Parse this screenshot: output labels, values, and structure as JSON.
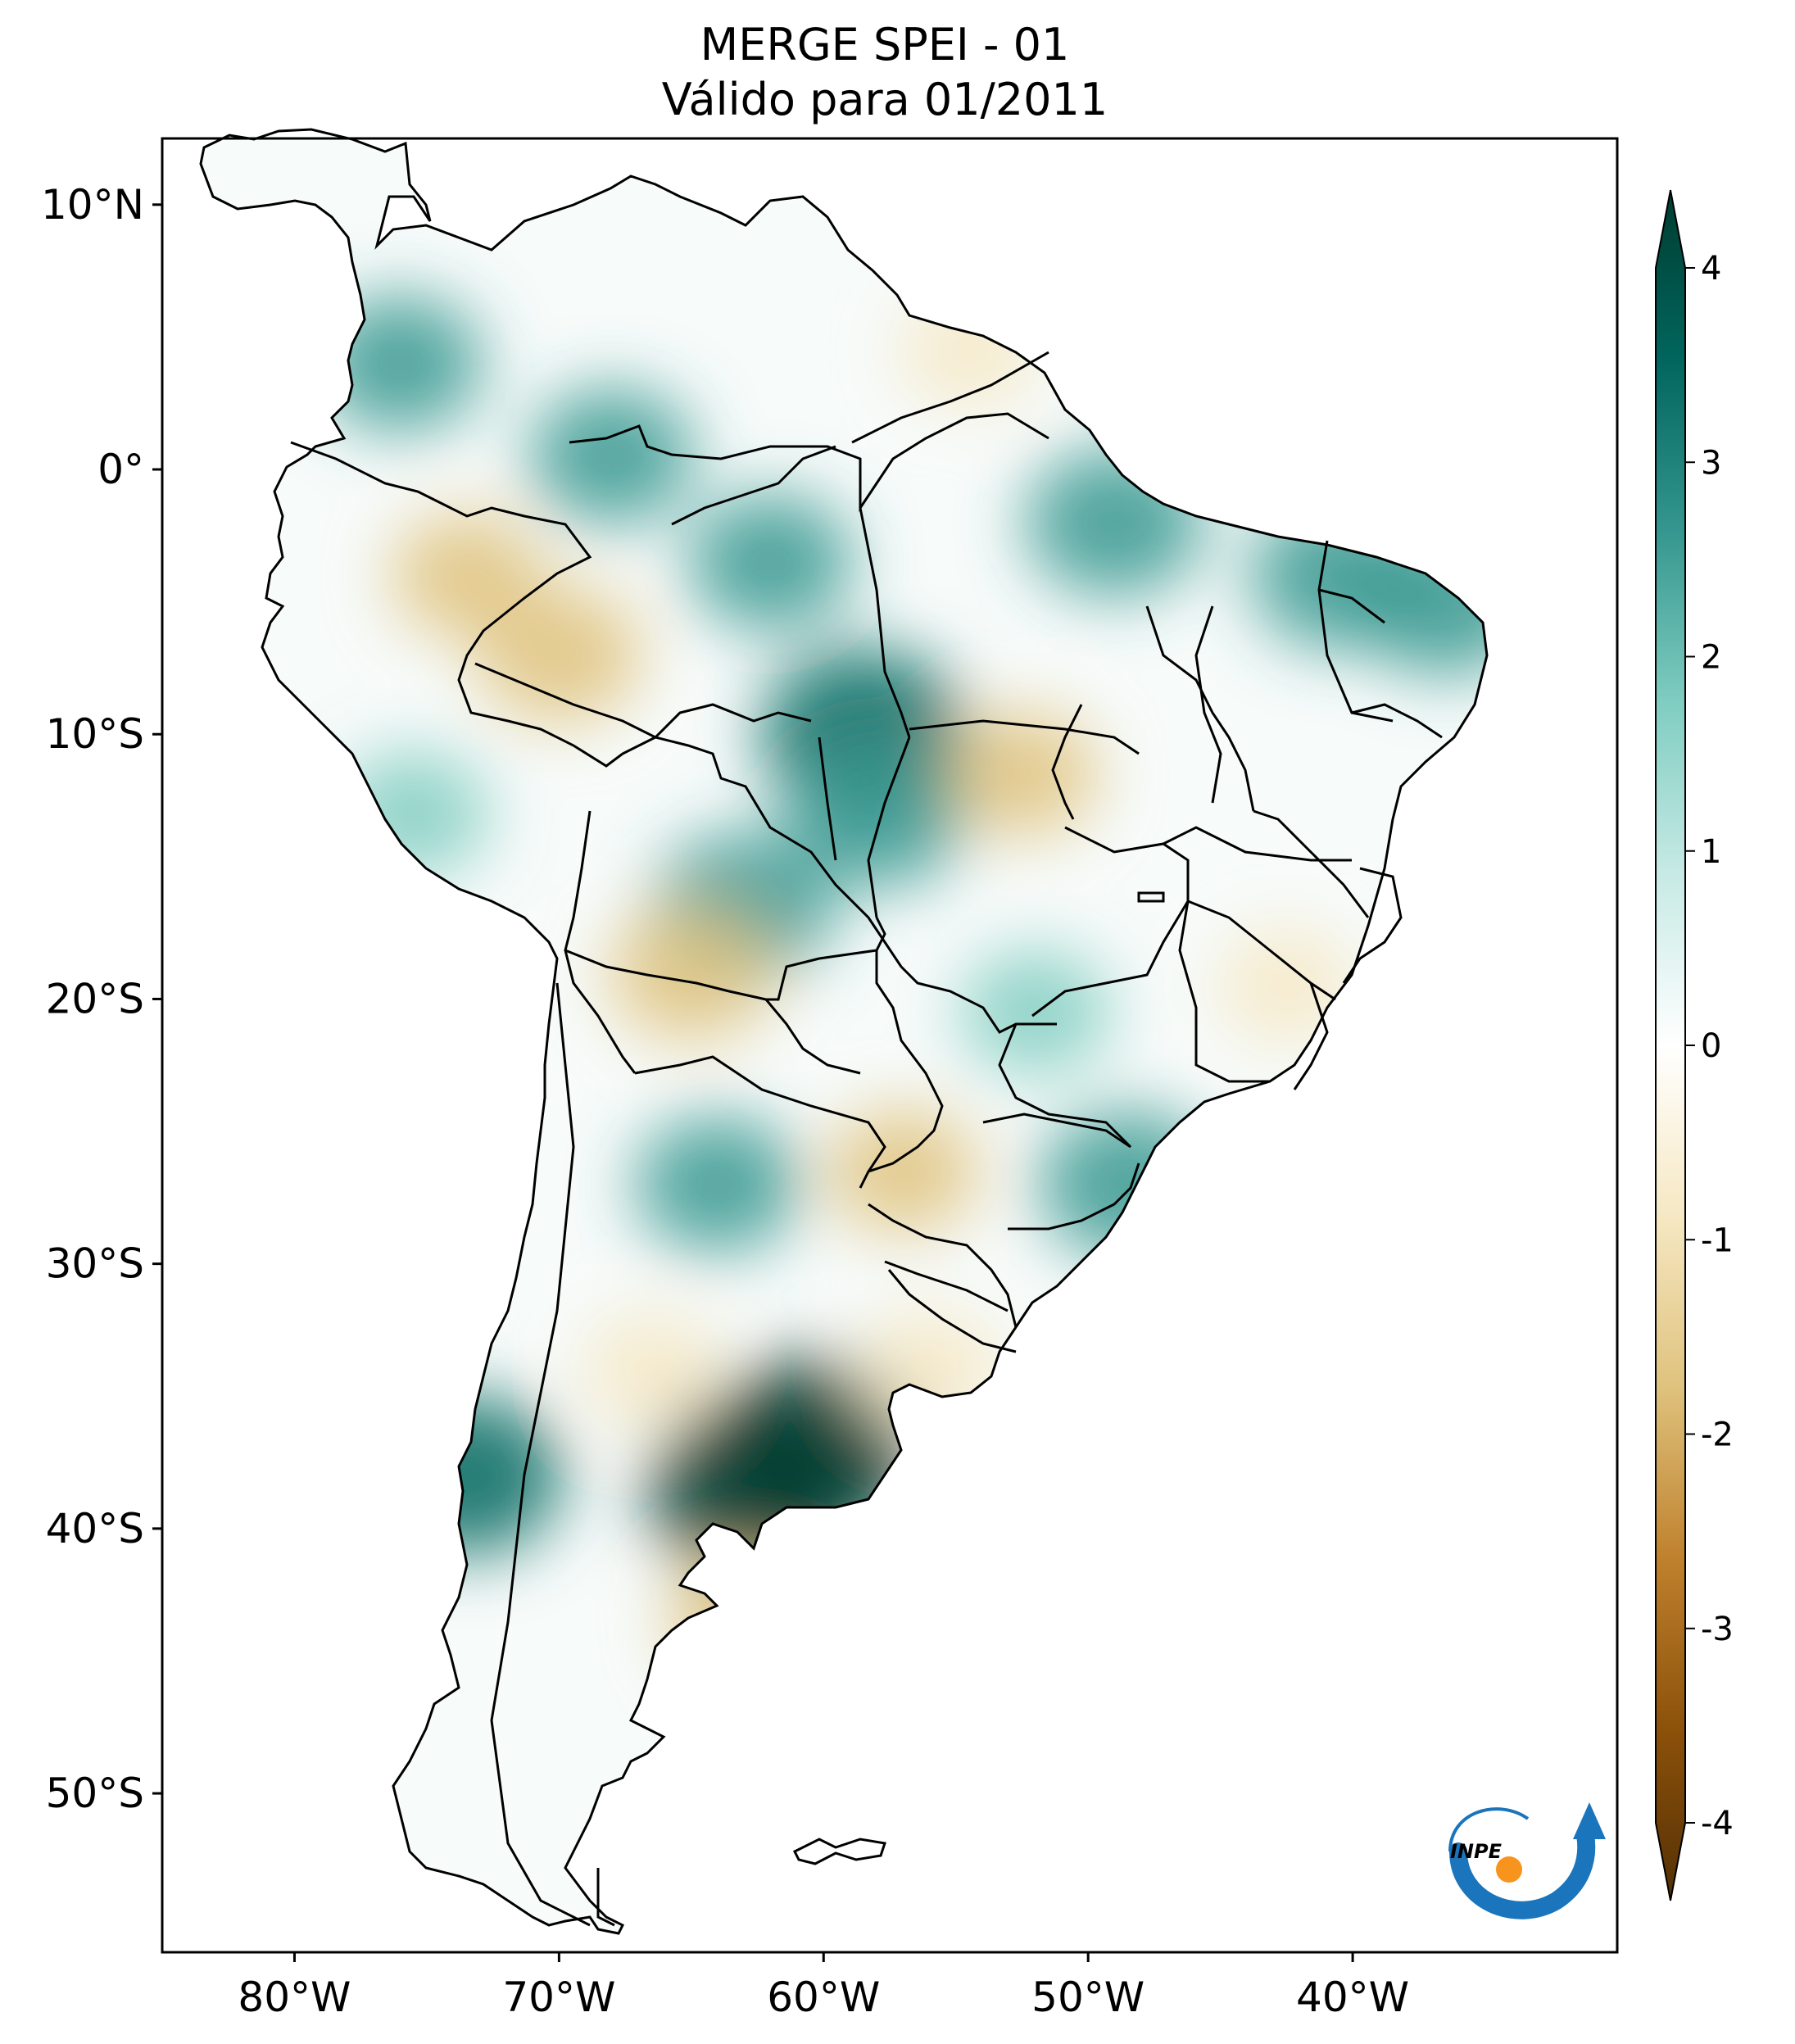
{
  "header": {
    "title_line1": "MERGE   SPEI - 01",
    "title_line2": "Válido para 01/2011"
  },
  "map": {
    "lon_range": [
      -85,
      -30
    ],
    "lat_range": [
      -56,
      12.5
    ],
    "lat_ticks": [
      {
        "value": 10,
        "label": "10°N"
      },
      {
        "value": 0,
        "label": "0°"
      },
      {
        "value": -10,
        "label": "10°S"
      },
      {
        "value": -20,
        "label": "20°S"
      },
      {
        "value": -30,
        "label": "30°S"
      },
      {
        "value": -40,
        "label": "40°S"
      },
      {
        "value": -50,
        "label": "50°S"
      }
    ],
    "lon_ticks": [
      {
        "value": -80,
        "label": "80°W"
      },
      {
        "value": -70,
        "label": "70°W"
      },
      {
        "value": -60,
        "label": "60°W"
      },
      {
        "value": -50,
        "label": "50°W"
      },
      {
        "value": -40,
        "label": "40°W"
      }
    ],
    "anomaly_blobs": [
      {
        "lon": -62.5,
        "lat": -38.5,
        "level": 4
      },
      {
        "lon": -60.5,
        "lat": -37.0,
        "level": 4
      },
      {
        "lon": -58.5,
        "lat": -10.0,
        "level": 3.5
      },
      {
        "lon": -63.0,
        "lat": -16.5,
        "level": 2.5
      },
      {
        "lon": -58.0,
        "lat": -13.0,
        "level": 2.5
      },
      {
        "lon": -73.5,
        "lat": -38.0,
        "level": 3
      },
      {
        "lon": -36.5,
        "lat": -5.0,
        "level": 2.5
      },
      {
        "lon": -40.5,
        "lat": -4.0,
        "level": 2.5
      },
      {
        "lon": -49.0,
        "lat": -2.0,
        "level": 2.5
      },
      {
        "lon": -48.5,
        "lat": -27.0,
        "level": 2.5
      },
      {
        "lon": -76.0,
        "lat": 4.0,
        "level": 2
      },
      {
        "lon": -64.0,
        "lat": -27.0,
        "level": 2
      },
      {
        "lon": -68.0,
        "lat": 0.5,
        "level": 2
      },
      {
        "lon": -75.5,
        "lat": -13.0,
        "level": 1.5
      },
      {
        "lon": -62.0,
        "lat": -3.5,
        "level": 2
      },
      {
        "lon": -52.0,
        "lat": -20.5,
        "level": 1.5
      },
      {
        "lon": -70.0,
        "lat": -7.0,
        "level": -2
      },
      {
        "lon": -73.5,
        "lat": -4.0,
        "level": -1.5
      },
      {
        "lon": -65.0,
        "lat": -19.0,
        "level": -2
      },
      {
        "lon": -52.5,
        "lat": -11.5,
        "level": -1.5
      },
      {
        "lon": -63.0,
        "lat": -43.5,
        "level": -1.5
      },
      {
        "lon": -57.0,
        "lat": -26.5,
        "level": -1.5
      },
      {
        "lon": -56.0,
        "lat": -34.0,
        "level": -1.2
      },
      {
        "lon": -54.5,
        "lat": 4.5,
        "level": -1
      },
      {
        "lon": -42.5,
        "lat": -19.5,
        "level": -1
      },
      {
        "lon": -66.5,
        "lat": -34.0,
        "level": -1
      }
    ]
  },
  "colorbar": {
    "ticks": [
      "4",
      "3",
      "2",
      "1",
      "0",
      "-1",
      "-2",
      "-3",
      "-4"
    ],
    "min": -4,
    "max": 4,
    "colors_dry_to_wet": [
      "#543005",
      "#8c510a",
      "#bf812d",
      "#dfc27d",
      "#f6e8c3",
      "#ffffff",
      "#c7eae5",
      "#80cdc1",
      "#35978f",
      "#01665e",
      "#003c30"
    ]
  },
  "logo": {
    "text": "INPE",
    "colors": {
      "arc": "#1b75bc",
      "dot": "#f7941d"
    }
  }
}
